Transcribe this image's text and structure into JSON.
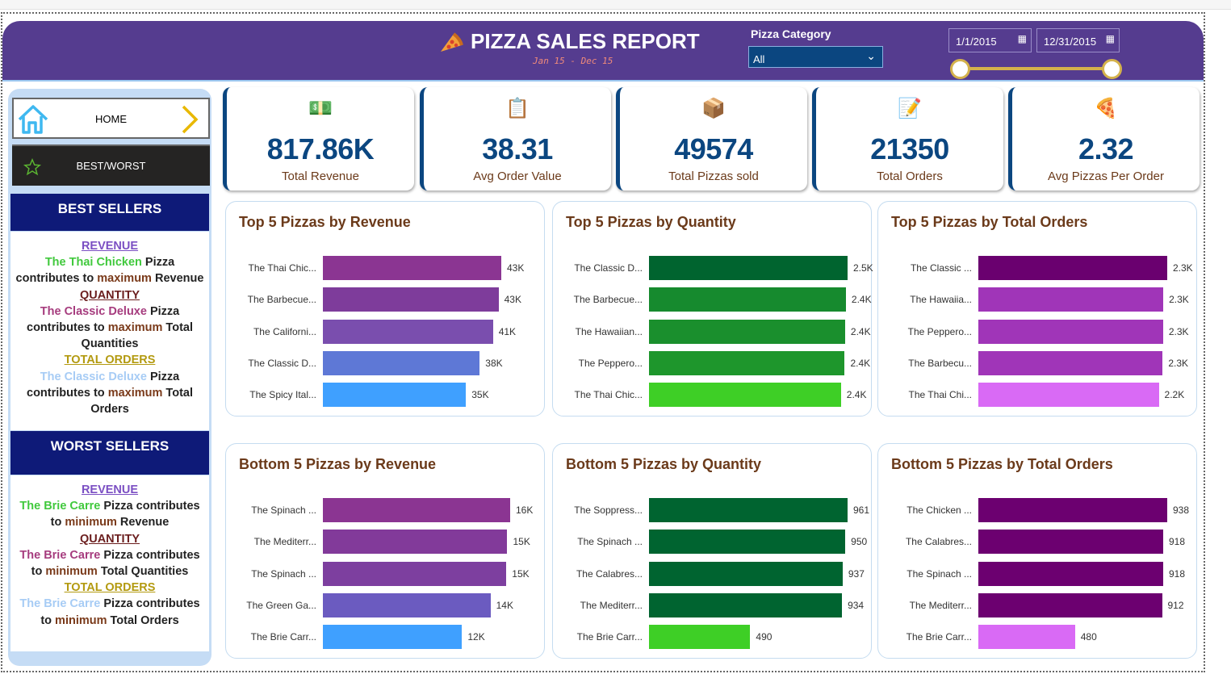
{
  "header": {
    "title": "PIZZA SALES REPORT",
    "subtitle": "Jan 15  -  Dec 15",
    "category_label": "Pizza Category",
    "category_value": "All",
    "date_start": "1/1/2015",
    "date_end": "12/31/2015"
  },
  "nav": {
    "home": "HOME",
    "best_worst": "BEST/WORST"
  },
  "best": {
    "heading": "BEST SELLERS",
    "rev_h": "REVENUE",
    "rev_name": "The Thai Chicken",
    "rev_pizza": " Pizza",
    "rev_line": "contributes to ",
    "rev_max": "maximum",
    "rev_end": " Revenue",
    "qty_h": "QUANTITY",
    "qty_name": "The Classic Deluxe",
    "qty_pizza": " Pizza",
    "qty_line": "contributes to ",
    "qty_max": "maximum",
    "qty_end": " Total Quantities",
    "ord_h": "TOTAL ORDERS",
    "ord_name": "The Classic Deluxe",
    "ord_pizza": " Pizza",
    "ord_line": "contributes to ",
    "ord_max": "maximum",
    "ord_end": " Total Orders"
  },
  "worst": {
    "heading": "WORST SELLERS",
    "rev_h": "REVENUE",
    "rev_name": "The Brie Carre",
    "rev_pizza": " Pizza contributes",
    "rev_line": "to ",
    "rev_min": "minimum",
    "rev_end": " Revenue",
    "qty_h": "QUANTITY",
    "qty_name": "The Brie Carre",
    "qty_pizza": " Pizza contributes",
    "qty_line": "to ",
    "qty_min": "minimum",
    "qty_end": " Total Quantities",
    "ord_h": "TOTAL ORDERS",
    "ord_name": "The Brie Carre",
    "ord_pizza": " Pizza contributes",
    "ord_line": "to ",
    "ord_min": "minimum",
    "ord_end": " Total Orders"
  },
  "kpis": [
    {
      "value": "817.86K",
      "label": "Total Revenue",
      "icon": "money-icon"
    },
    {
      "value": "38.31",
      "label": "Avg Order Value",
      "icon": "clipboard-icon"
    },
    {
      "value": "49574",
      "label": "Total Pizzas sold",
      "icon": "delivery-person-icon"
    },
    {
      "value": "21350",
      "label": "Total Orders",
      "icon": "order-list-icon"
    },
    {
      "value": "2.32",
      "label": "Avg Pizzas Per Order",
      "icon": "pizza-icon"
    }
  ],
  "chart_data": [
    {
      "type": "bar",
      "orientation": "horizontal",
      "title": "Top 5 Pizzas by Revenue",
      "categories": [
        "The Thai Chic...",
        "The Barbecue...",
        "The Californi...",
        "The Classic D...",
        "The Spicy Ital..."
      ],
      "values": [
        43434,
        42768,
        41410,
        38180,
        34831
      ],
      "labels": [
        "43K",
        "43K",
        "41K",
        "38K",
        "35K"
      ],
      "colors": [
        "#8B3592",
        "#7E3C9B",
        "#7A4EAE",
        "#5E78D6",
        "#3FA0FF"
      ]
    },
    {
      "type": "bar",
      "orientation": "horizontal",
      "title": "Top 5 Pizzas by Quantity",
      "categories": [
        "The Classic D...",
        "The Barbecue...",
        "The Hawaiian...",
        "The Pepperо...",
        "The Thai Chic..."
      ],
      "values": [
        2453,
        2432,
        2422,
        2418,
        2371
      ],
      "labels": [
        "2.5K",
        "2.4K",
        "2.4K",
        "2.4K",
        "2.4K"
      ],
      "colors": [
        "#00642F",
        "#168A2E",
        "#1A8F2D",
        "#1E962C",
        "#3ECF26"
      ]
    },
    {
      "type": "bar",
      "orientation": "horizontal",
      "title": "Top 5 Pizzas by Total Orders",
      "categories": [
        "The Classic ...",
        "The Hawaiia...",
        "The Peppero...",
        "The Barbecu...",
        "The Thai Chi..."
      ],
      "values": [
        2329,
        2280,
        2278,
        2273,
        2225
      ],
      "labels": [
        "2.3K",
        "2.3K",
        "2.3K",
        "2.3K",
        "2.2K"
      ],
      "colors": [
        "#6A006F",
        "#A035B8",
        "#A035B8",
        "#A035B8",
        "#D96AF5"
      ]
    },
    {
      "type": "bar",
      "orientation": "horizontal",
      "title": "Bottom 5 Pizzas by Revenue",
      "categories": [
        "The Spinach ...",
        "The Mediterr...",
        "The Spinach ...",
        "The Green Ga...",
        "The Brie Carr..."
      ],
      "values": [
        15596,
        15360,
        15278,
        13956,
        11588
      ],
      "labels": [
        "16K",
        "15K",
        "15K",
        "14K",
        "12K"
      ],
      "colors": [
        "#8B3592",
        "#823A9A",
        "#7D3F9F",
        "#6B5BC0",
        "#3FA0FF"
      ]
    },
    {
      "type": "bar",
      "orientation": "horizontal",
      "title": "Bottom 5 Pizzas by Quantity",
      "categories": [
        "The Soppress...",
        "The Spinach ...",
        "The Calabres...",
        "The Mediterr...",
        "The Brie Carr..."
      ],
      "values": [
        961,
        950,
        937,
        934,
        490
      ],
      "labels": [
        "961",
        "950",
        "937",
        "934",
        "490"
      ],
      "colors": [
        "#006430",
        "#006430",
        "#006430",
        "#006430",
        "#3ECF26"
      ]
    },
    {
      "type": "bar",
      "orientation": "horizontal",
      "title": "Bottom 5 Pizzas by Total Orders",
      "categories": [
        "The Chicken ...",
        "The Calabres...",
        "The Spinach ...",
        "The Mediterr...",
        "The Brie Carr..."
      ],
      "values": [
        938,
        918,
        918,
        912,
        480
      ],
      "labels": [
        "938",
        "918",
        "918",
        "912",
        "480"
      ],
      "colors": [
        "#6C0070",
        "#6C0070",
        "#6C0070",
        "#6C0070",
        "#D96AF5"
      ]
    }
  ]
}
